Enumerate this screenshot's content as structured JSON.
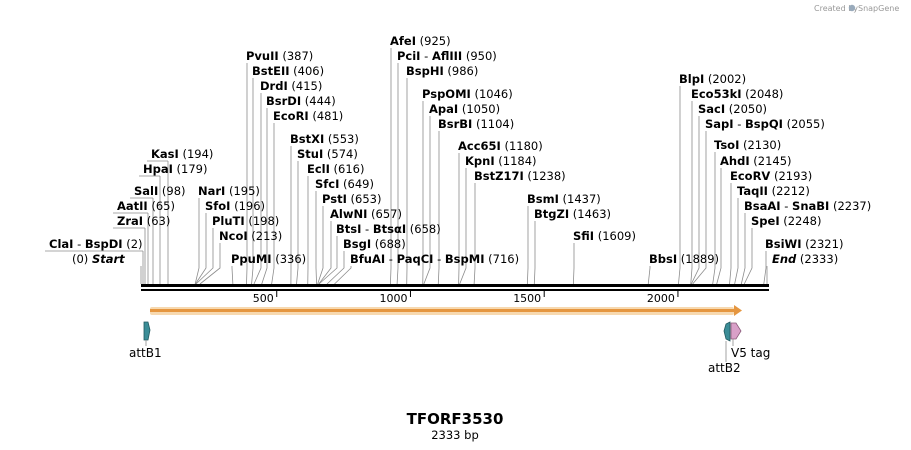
{
  "credit": {
    "text": "Created by",
    "brand": "SnapGene"
  },
  "title": "TFORF3530",
  "length_label": "2333 bp",
  "seq_length": 2333,
  "scale_ticks": [
    {
      "value": 500,
      "label": "500"
    },
    {
      "value": 1000,
      "label": "1000"
    },
    {
      "value": 1500,
      "label": "1500"
    },
    {
      "value": 2000,
      "label": "2000"
    }
  ],
  "enzymes": [
    {
      "name": "PvuII",
      "pos": "(387)",
      "site": 387
    },
    {
      "name": "BstEII",
      "pos": "(406)",
      "site": 406
    },
    {
      "name": "DrdI",
      "pos": "(415)",
      "site": 415
    },
    {
      "name": "BsrDI",
      "pos": "(444)",
      "site": 444
    },
    {
      "name": "EcoRI",
      "pos": "(481)",
      "site": 481
    },
    {
      "name": "BstXI",
      "pos": "(553)",
      "site": 553
    },
    {
      "name": "StuI",
      "pos": "(574)",
      "site": 574
    },
    {
      "name": "EclI",
      "pos": "(616)",
      "site": 616
    },
    {
      "name": "SfcI",
      "pos": "(649)",
      "site": 649
    },
    {
      "name": "PstI",
      "pos": "(653)",
      "site": 653
    },
    {
      "name": "AlwNI",
      "pos": "(657)",
      "site": 657
    },
    {
      "name": "BtsI",
      "name2": "BtsαI",
      "pos": "(658)",
      "site": 658
    },
    {
      "name": "BsgI",
      "pos": "(688)",
      "site": 688
    },
    {
      "name": "BfuAI",
      "name2": "PaqCI",
      "name3": "BspMI",
      "pos": "(716)",
      "site": 716
    },
    {
      "name": "AfeI",
      "pos": "(925)",
      "site": 925
    },
    {
      "name": "PciI",
      "name2": "AflIII",
      "pos": "(950)",
      "site": 950
    },
    {
      "name": "BspHI",
      "pos": "(986)",
      "site": 986
    },
    {
      "name": "PspOMI",
      "pos": "(1046)",
      "site": 1046
    },
    {
      "name": "ApaI",
      "pos": "(1050)",
      "site": 1050
    },
    {
      "name": "BsrBI",
      "pos": "(1104)",
      "site": 1104
    },
    {
      "name": "Acc65I",
      "pos": "(1180)",
      "site": 1180
    },
    {
      "name": "KpnI",
      "pos": "(1184)",
      "site": 1184
    },
    {
      "name": "BstZ17I",
      "pos": "(1238)",
      "site": 1238
    },
    {
      "name": "BsmI",
      "pos": "(1437)",
      "site": 1437
    },
    {
      "name": "BtgZI",
      "pos": "(1463)",
      "site": 1463
    },
    {
      "name": "SfiI",
      "pos": "(1609)",
      "site": 1609
    },
    {
      "name": "BbsI",
      "pos": "(1889)",
      "site": 1889
    },
    {
      "name": "BlpI",
      "pos": "(2002)",
      "site": 2002
    },
    {
      "name": "Eco53kI",
      "pos": "(2048)",
      "site": 2048
    },
    {
      "name": "SacI",
      "pos": "(2050)",
      "site": 2050
    },
    {
      "name": "SapI",
      "name2": "BspQI",
      "pos": "(2055)",
      "site": 2055
    },
    {
      "name": "TsoI",
      "pos": "(2130)",
      "site": 2130
    },
    {
      "name": "AhdI",
      "pos": "(2145)",
      "site": 2145
    },
    {
      "name": "EcoRV",
      "pos": "(2193)",
      "site": 2193
    },
    {
      "name": "TaqII",
      "pos": "(2212)",
      "site": 2212
    },
    {
      "name": "BsaAI",
      "name2": "SnaBI",
      "pos": "(2237)",
      "site": 2237
    },
    {
      "name": "SpeI",
      "pos": "(2248)",
      "site": 2248
    },
    {
      "name": "BsiWI",
      "pos": "(2321)",
      "site": 2321
    },
    {
      "name": "KasI",
      "pos": "(194)",
      "site": 194
    },
    {
      "name": "HpaI",
      "pos": "(179)",
      "site": 179
    },
    {
      "name": "SalI",
      "pos": "(98)",
      "site": 98
    },
    {
      "name": "AatII",
      "pos": "(65)",
      "site": 65
    },
    {
      "name": "ZraI",
      "pos": "(63)",
      "site": 63
    },
    {
      "name": "ClaI",
      "name2": "BspDI",
      "pos": "(2)",
      "site": 2
    },
    {
      "name": "NarI",
      "pos": "(195)",
      "site": 195
    },
    {
      "name": "SfoI",
      "pos": "(196)",
      "site": 196
    },
    {
      "name": "PluTI",
      "pos": "(198)",
      "site": 198
    },
    {
      "name": "NcoI",
      "pos": "(213)",
      "site": 213
    },
    {
      "name": "PpuMI",
      "pos": "(336)",
      "site": 336
    }
  ],
  "markers": {
    "start": {
      "label": "Start",
      "pos": "(0)"
    },
    "end": {
      "label": "End",
      "pos": "(2333)"
    }
  },
  "features": [
    {
      "name": "attB1"
    },
    {
      "name": "attB2"
    },
    {
      "name": "V5 tag"
    }
  ],
  "colors": {
    "backbone": "#000000",
    "orf_fill": "#f3a35a",
    "orf_edge": "#d98a2a",
    "att_fill": "#3b8d97",
    "v5_fill": "#d9a0c8",
    "leader": "#8c8c8c"
  }
}
